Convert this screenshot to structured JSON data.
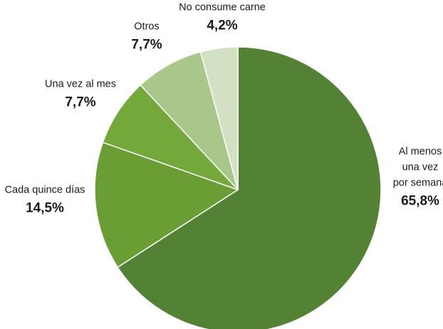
{
  "chart_data": {
    "type": "pie",
    "categories": [
      "Al menos una vez por semana",
      "Cada quince días",
      "Una vez al mes",
      "Otros",
      "No consume carne"
    ],
    "label_lines": [
      [
        "Al menos",
        "una vez",
        "por semana"
      ],
      [
        "Cada quince días"
      ],
      [
        "Una vez al mes"
      ],
      [
        "Otros"
      ],
      [
        "No consume carne"
      ]
    ],
    "values": [
      65.8,
      14.5,
      7.7,
      7.7,
      4.2
    ],
    "value_labels": [
      "65,8%",
      "14,5%",
      "7,7%",
      "7,7%",
      "4,2%"
    ],
    "colors": [
      "#548235",
      "#6a9e34",
      "#72a93a",
      "#a9c78b",
      "#d3e0c3"
    ],
    "start": "12 o'clock",
    "direction": "clockwise",
    "legend": "none"
  }
}
